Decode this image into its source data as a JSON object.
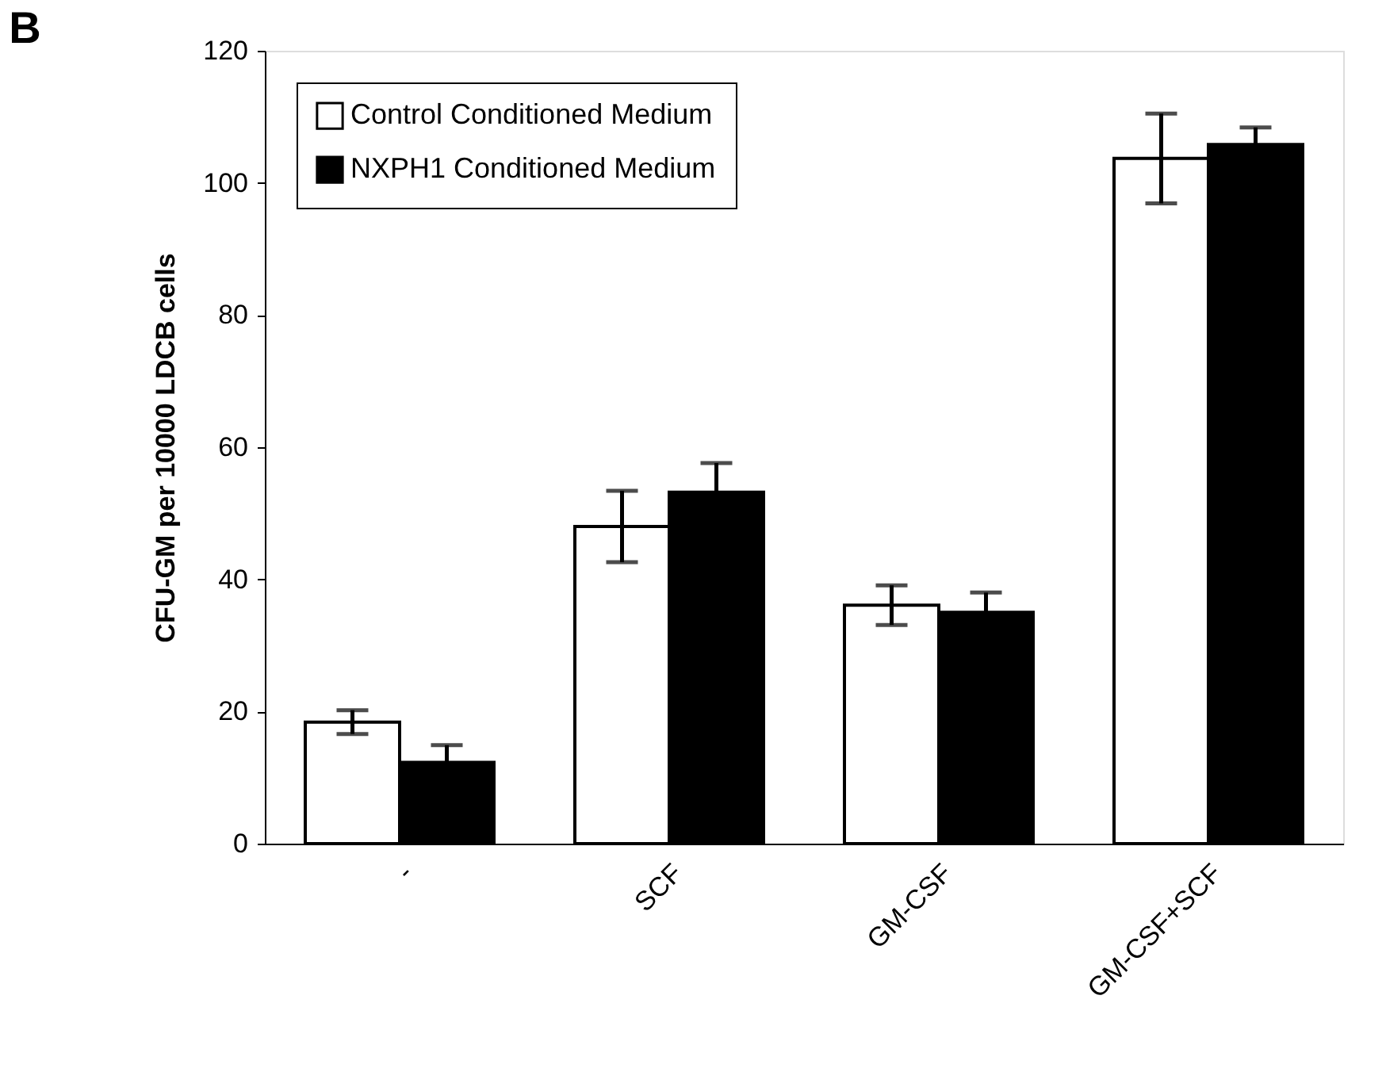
{
  "chart_data": {
    "type": "bar",
    "ylabel": "CFU-GM per 10000 LDCB cells",
    "annotations": [
      "B"
    ],
    "categories": [
      "-",
      "SCF",
      "GM-CSF",
      "GM-CSF+SCF"
    ],
    "series": [
      {
        "name": "Control Conditioned Medium",
        "color": "#ffffff",
        "values": [
          18.4,
          48,
          36.1,
          103.7
        ],
        "errors": [
          1.8,
          5.4,
          3,
          6.8
        ]
      },
      {
        "name": "NXPH1 Conditioned Medium",
        "color": "#000000",
        "values": [
          12.3,
          53.2,
          35,
          105.8
        ],
        "errors": [
          2.6,
          4.4,
          3,
          2.6
        ]
      }
    ],
    "ylim": [
      0,
      120
    ],
    "yticks": [
      0,
      20,
      40,
      60,
      80,
      100,
      120
    ],
    "grid": false,
    "legend": "top left"
  }
}
